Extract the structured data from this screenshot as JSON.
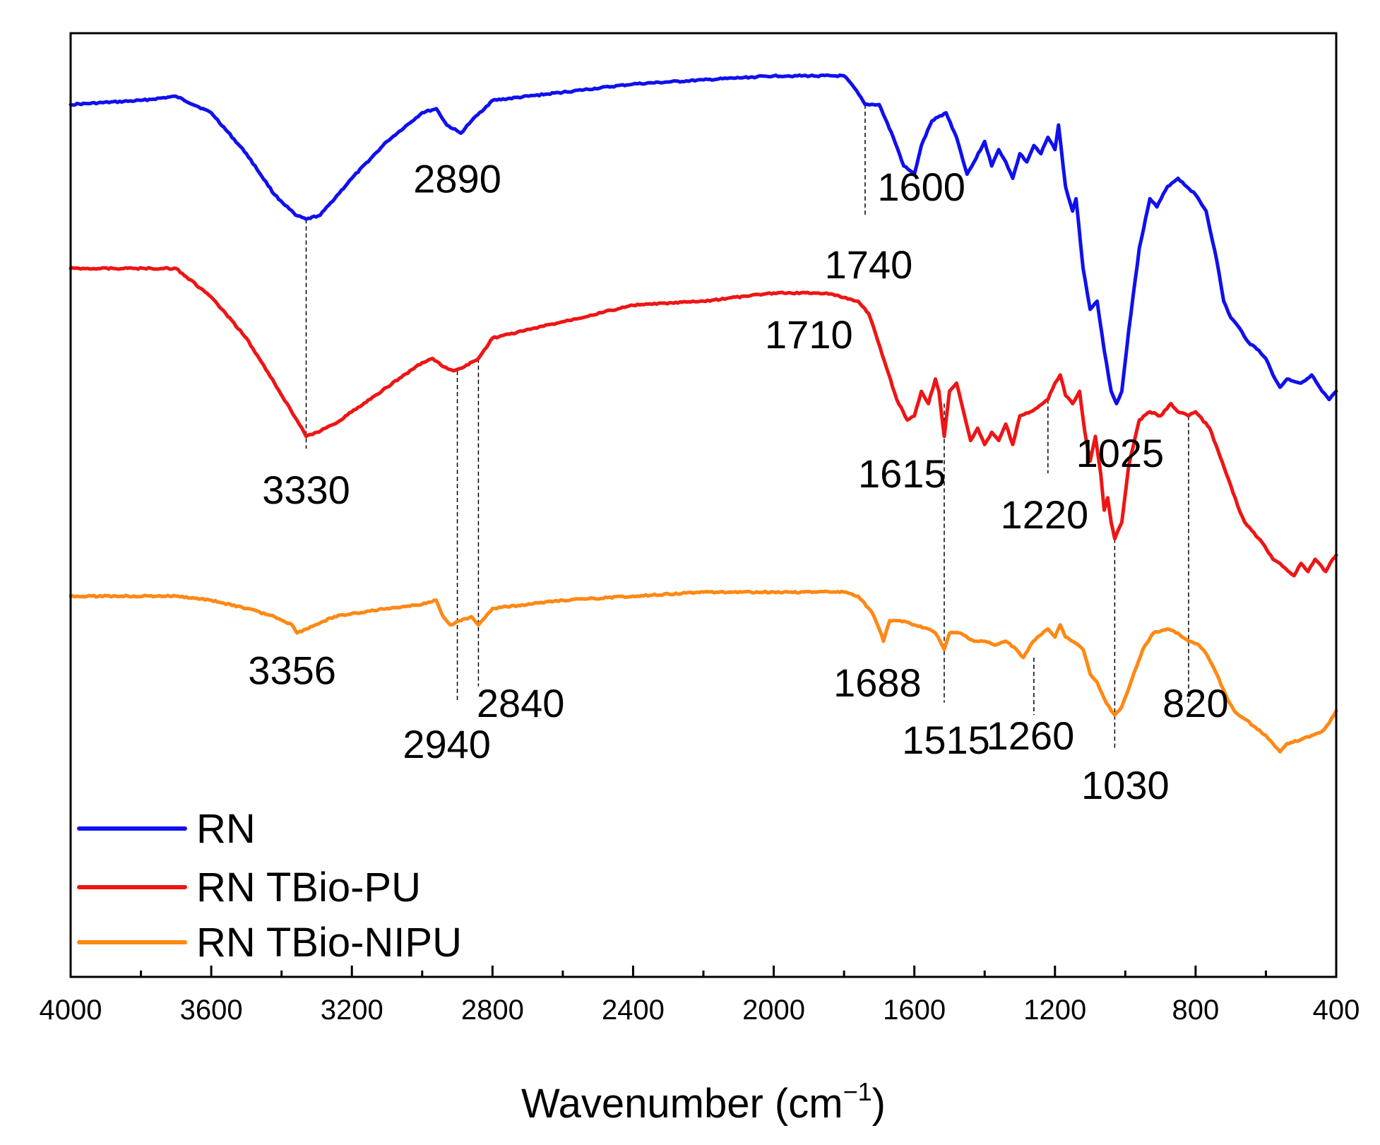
{
  "chart_data": {
    "type": "line",
    "title": "",
    "xlabel": "Wavenumber (cm",
    "xlabel_sup": "−1",
    "xlabel_close": ")",
    "ylabel": "",
    "xlim": [
      4000,
      400
    ],
    "x_ticks": [
      "4000",
      "3600",
      "3200",
      "2800",
      "2400",
      "2000",
      "1600",
      "1200",
      "800",
      "400"
    ],
    "legend_position": "bottom-left",
    "series": [
      {
        "name": "RN",
        "color": "#1010ee",
        "points": [
          [
            4000,
            0.1
          ],
          [
            3800,
            0.09
          ],
          [
            3700,
            0.08
          ],
          [
            3600,
            0.12
          ],
          [
            3500,
            0.22
          ],
          [
            3420,
            0.32
          ],
          [
            3360,
            0.37
          ],
          [
            3330,
            0.38
          ],
          [
            3290,
            0.37
          ],
          [
            3200,
            0.28
          ],
          [
            3100,
            0.19
          ],
          [
            3000,
            0.12
          ],
          [
            2960,
            0.11
          ],
          [
            2930,
            0.15
          ],
          [
            2890,
            0.17
          ],
          [
            2860,
            0.14
          ],
          [
            2800,
            0.09
          ],
          [
            2600,
            0.07
          ],
          [
            2400,
            0.05
          ],
          [
            2200,
            0.04
          ],
          [
            2000,
            0.03
          ],
          [
            1800,
            0.03
          ],
          [
            1770,
            0.06
          ],
          [
            1740,
            0.1
          ],
          [
            1700,
            0.1
          ],
          [
            1660,
            0.18
          ],
          [
            1630,
            0.25
          ],
          [
            1600,
            0.27
          ],
          [
            1580,
            0.2
          ],
          [
            1550,
            0.14
          ],
          [
            1510,
            0.12
          ],
          [
            1480,
            0.18
          ],
          [
            1450,
            0.27
          ],
          [
            1430,
            0.24
          ],
          [
            1400,
            0.19
          ],
          [
            1380,
            0.25
          ],
          [
            1360,
            0.21
          ],
          [
            1340,
            0.24
          ],
          [
            1320,
            0.28
          ],
          [
            1300,
            0.22
          ],
          [
            1280,
            0.24
          ],
          [
            1260,
            0.2
          ],
          [
            1240,
            0.22
          ],
          [
            1220,
            0.18
          ],
          [
            1200,
            0.21
          ],
          [
            1190,
            0.15
          ],
          [
            1170,
            0.3
          ],
          [
            1150,
            0.36
          ],
          [
            1140,
            0.33
          ],
          [
            1120,
            0.5
          ],
          [
            1100,
            0.6
          ],
          [
            1080,
            0.58
          ],
          [
            1060,
            0.7
          ],
          [
            1040,
            0.8
          ],
          [
            1025,
            0.83
          ],
          [
            1010,
            0.8
          ],
          [
            990,
            0.65
          ],
          [
            960,
            0.45
          ],
          [
            930,
            0.33
          ],
          [
            910,
            0.35
          ],
          [
            880,
            0.3
          ],
          [
            850,
            0.28
          ],
          [
            800,
            0.32
          ],
          [
            770,
            0.36
          ],
          [
            740,
            0.48
          ],
          [
            720,
            0.58
          ],
          [
            700,
            0.62
          ],
          [
            680,
            0.64
          ],
          [
            650,
            0.68
          ],
          [
            620,
            0.7
          ],
          [
            600,
            0.72
          ],
          [
            580,
            0.76
          ],
          [
            560,
            0.79
          ],
          [
            540,
            0.77
          ],
          [
            500,
            0.78
          ],
          [
            470,
            0.76
          ],
          [
            440,
            0.8
          ],
          [
            420,
            0.82
          ],
          [
            400,
            0.8
          ]
        ]
      },
      {
        "name": "RN TBio-PU",
        "color": "#ee1515",
        "points": [
          [
            4000,
            0.5
          ],
          [
            3700,
            0.5
          ],
          [
            3600,
            0.57
          ],
          [
            3500,
            0.67
          ],
          [
            3420,
            0.78
          ],
          [
            3350,
            0.88
          ],
          [
            3330,
            0.91
          ],
          [
            3300,
            0.9
          ],
          [
            3250,
            0.88
          ],
          [
            3200,
            0.85
          ],
          [
            3100,
            0.79
          ],
          [
            3000,
            0.73
          ],
          [
            2970,
            0.72
          ],
          [
            2940,
            0.74
          ],
          [
            2910,
            0.75
          ],
          [
            2880,
            0.74
          ],
          [
            2840,
            0.72
          ],
          [
            2800,
            0.67
          ],
          [
            2600,
            0.63
          ],
          [
            2400,
            0.59
          ],
          [
            2200,
            0.58
          ],
          [
            2000,
            0.56
          ],
          [
            1850,
            0.56
          ],
          [
            1760,
            0.58
          ],
          [
            1730,
            0.61
          ],
          [
            1710,
            0.66
          ],
          [
            1680,
            0.74
          ],
          [
            1650,
            0.82
          ],
          [
            1620,
            0.87
          ],
          [
            1600,
            0.86
          ],
          [
            1580,
            0.8
          ],
          [
            1560,
            0.83
          ],
          [
            1540,
            0.77
          ],
          [
            1530,
            0.8
          ],
          [
            1515,
            0.91
          ],
          [
            1500,
            0.8
          ],
          [
            1480,
            0.78
          ],
          [
            1460,
            0.85
          ],
          [
            1440,
            0.92
          ],
          [
            1420,
            0.89
          ],
          [
            1400,
            0.93
          ],
          [
            1380,
            0.9
          ],
          [
            1360,
            0.92
          ],
          [
            1340,
            0.88
          ],
          [
            1320,
            0.93
          ],
          [
            1300,
            0.86
          ],
          [
            1270,
            0.85
          ],
          [
            1250,
            0.84
          ],
          [
            1220,
            0.82
          ],
          [
            1200,
            0.78
          ],
          [
            1185,
            0.76
          ],
          [
            1170,
            0.81
          ],
          [
            1150,
            0.83
          ],
          [
            1130,
            0.8
          ],
          [
            1115,
            0.9
          ],
          [
            1100,
            0.97
          ],
          [
            1085,
            0.91
          ],
          [
            1070,
            1.0
          ],
          [
            1060,
            1.09
          ],
          [
            1050,
            1.06
          ],
          [
            1040,
            1.12
          ],
          [
            1030,
            1.16
          ],
          [
            1010,
            1.12
          ],
          [
            990,
            0.98
          ],
          [
            960,
            0.87
          ],
          [
            930,
            0.85
          ],
          [
            900,
            0.86
          ],
          [
            870,
            0.83
          ],
          [
            850,
            0.85
          ],
          [
            820,
            0.86
          ],
          [
            800,
            0.85
          ],
          [
            760,
            0.89
          ],
          [
            730,
            0.96
          ],
          [
            700,
            1.03
          ],
          [
            680,
            1.08
          ],
          [
            660,
            1.12
          ],
          [
            640,
            1.14
          ],
          [
            610,
            1.17
          ],
          [
            580,
            1.21
          ],
          [
            560,
            1.22
          ],
          [
            520,
            1.25
          ],
          [
            500,
            1.22
          ],
          [
            480,
            1.24
          ],
          [
            460,
            1.21
          ],
          [
            430,
            1.24
          ],
          [
            410,
            1.21
          ],
          [
            400,
            1.2
          ]
        ]
      },
      {
        "name": "RN TBio-NIPU",
        "color": "#ff8814",
        "points": [
          [
            4000,
            1.3
          ],
          [
            3700,
            1.3
          ],
          [
            3600,
            1.31
          ],
          [
            3500,
            1.33
          ],
          [
            3420,
            1.35
          ],
          [
            3370,
            1.37
          ],
          [
            3356,
            1.39
          ],
          [
            3330,
            1.38
          ],
          [
            3250,
            1.35
          ],
          [
            3100,
            1.33
          ],
          [
            3000,
            1.32
          ],
          [
            2960,
            1.31
          ],
          [
            2940,
            1.35
          ],
          [
            2920,
            1.37
          ],
          [
            2890,
            1.36
          ],
          [
            2860,
            1.35
          ],
          [
            2840,
            1.37
          ],
          [
            2800,
            1.33
          ],
          [
            2600,
            1.31
          ],
          [
            2400,
            1.3
          ],
          [
            2200,
            1.29
          ],
          [
            2000,
            1.29
          ],
          [
            1800,
            1.29
          ],
          [
            1760,
            1.3
          ],
          [
            1720,
            1.34
          ],
          [
            1700,
            1.38
          ],
          [
            1688,
            1.41
          ],
          [
            1670,
            1.36
          ],
          [
            1640,
            1.36
          ],
          [
            1600,
            1.37
          ],
          [
            1560,
            1.38
          ],
          [
            1540,
            1.39
          ],
          [
            1515,
            1.43
          ],
          [
            1500,
            1.39
          ],
          [
            1470,
            1.39
          ],
          [
            1430,
            1.41
          ],
          [
            1400,
            1.41
          ],
          [
            1370,
            1.42
          ],
          [
            1340,
            1.41
          ],
          [
            1310,
            1.43
          ],
          [
            1290,
            1.45
          ],
          [
            1270,
            1.42
          ],
          [
            1250,
            1.4
          ],
          [
            1220,
            1.38
          ],
          [
            1200,
            1.4
          ],
          [
            1185,
            1.37
          ],
          [
            1170,
            1.4
          ],
          [
            1150,
            1.41
          ],
          [
            1120,
            1.43
          ],
          [
            1100,
            1.49
          ],
          [
            1080,
            1.51
          ],
          [
            1060,
            1.55
          ],
          [
            1040,
            1.58
          ],
          [
            1030,
            1.59
          ],
          [
            1010,
            1.57
          ],
          [
            980,
            1.5
          ],
          [
            950,
            1.43
          ],
          [
            920,
            1.39
          ],
          [
            880,
            1.38
          ],
          [
            850,
            1.39
          ],
          [
            820,
            1.41
          ],
          [
            790,
            1.42
          ],
          [
            770,
            1.44
          ],
          [
            740,
            1.49
          ],
          [
            710,
            1.55
          ],
          [
            690,
            1.58
          ],
          [
            660,
            1.6
          ],
          [
            630,
            1.62
          ],
          [
            600,
            1.64
          ],
          [
            580,
            1.66
          ],
          [
            560,
            1.68
          ],
          [
            540,
            1.66
          ],
          [
            500,
            1.65
          ],
          [
            470,
            1.64
          ],
          [
            440,
            1.63
          ],
          [
            420,
            1.61
          ],
          [
            400,
            1.58
          ]
        ]
      }
    ],
    "annotations": [
      {
        "label": "3330",
        "x": 3330,
        "level": 0.91,
        "dash": [
          3330,
          0.38,
          3330,
          0.94
        ],
        "text_pos": [
          3330,
          1.04
        ]
      },
      {
        "label": "2890",
        "x": 2890,
        "level": 0.17,
        "dash": null,
        "text_pos": [
          2900,
          0.28
        ]
      },
      {
        "label": "1600",
        "x": 1600,
        "level": 0.27,
        "dash": null,
        "text_pos": [
          1580,
          0.3
        ]
      },
      {
        "label": "1740",
        "x": 1740,
        "level": 0.1,
        "dash": [
          1740,
          0.1,
          1740,
          0.37
        ],
        "text_pos": [
          1730,
          0.49
        ]
      },
      {
        "label": "1025",
        "x": 1025,
        "level": 0.83,
        "dash": null,
        "text_pos": [
          1015,
          0.95
        ]
      },
      {
        "label": "1710",
        "x": 1710,
        "level": 0.66,
        "dash": null,
        "text_pos": [
          1900,
          0.66
        ]
      },
      {
        "label": "1615",
        "x": 1615,
        "level": 0.87,
        "dash": null,
        "text_pos": [
          1635,
          1.0
        ]
      },
      {
        "label": "1220",
        "x": 1220,
        "level": 0.82,
        "dash": [
          1220,
          0.82,
          1220,
          1.0
        ],
        "text_pos": [
          1230,
          1.1
        ]
      },
      {
        "label": "3356",
        "x": 3356,
        "level": 1.39,
        "dash": null,
        "text_pos": [
          3370,
          1.48
        ]
      },
      {
        "label": "2940",
        "x": 2940,
        "level": 1.37,
        "dash": [
          2900,
          0.75,
          2900,
          1.56
        ],
        "text_pos": [
          2930,
          1.66
        ]
      },
      {
        "label": "2840",
        "x": 2840,
        "level": 1.37,
        "dash": [
          2840,
          0.72,
          2840,
          1.52
        ],
        "text_pos": [
          2720,
          1.56
        ]
      },
      {
        "label": "1688",
        "x": 1688,
        "level": 1.41,
        "dash": null,
        "text_pos": [
          1705,
          1.51
        ]
      },
      {
        "label": "1515",
        "x": 1515,
        "level": 1.43,
        "dash": [
          1515,
          0.83,
          1515,
          1.56
        ],
        "text_pos": [
          1510,
          1.65
        ]
      },
      {
        "label": "1260",
        "x": 1260,
        "level": 1.45,
        "dash": [
          1260,
          1.45,
          1260,
          1.59
        ],
        "text_pos": [
          1270,
          1.64
        ]
      },
      {
        "label": "1030",
        "x": 1030,
        "level": 1.59,
        "dash": [
          1030,
          1.16,
          1030,
          1.67
        ],
        "text_pos": [
          1000,
          1.76
        ]
      },
      {
        "label": "820",
        "x": 820,
        "level": 1.41,
        "dash": [
          820,
          0.86,
          820,
          1.56
        ],
        "text_pos": [
          800,
          1.56
        ]
      }
    ]
  }
}
